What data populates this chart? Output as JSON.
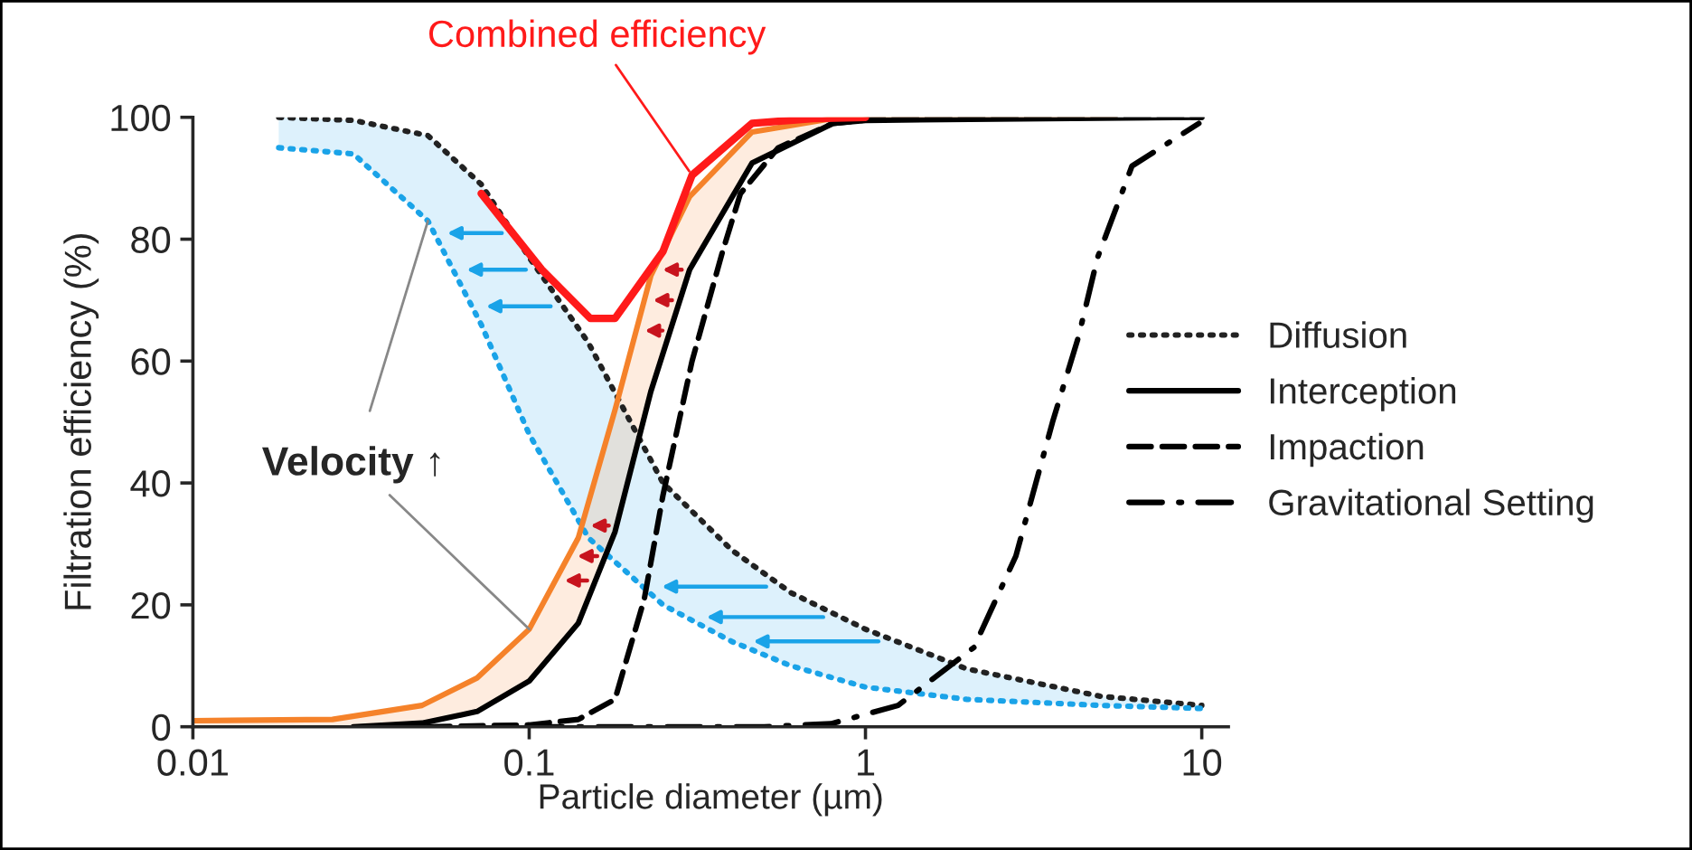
{
  "chart_data": {
    "type": "line",
    "xlabel": "Particle diameter (µm)",
    "ylabel": "Filtration efficiency (%)",
    "log": "x",
    "xlim": [
      0.01,
      12
    ],
    "xticks": [
      0.01,
      0.1,
      1,
      10
    ],
    "ylim": [
      0,
      100
    ],
    "yticks": [
      0,
      20,
      40,
      60,
      80,
      100
    ],
    "grid": false,
    "legend": "right",
    "series": [
      {
        "name": "Diffusion",
        "color": "#222222",
        "line_style": "dotted",
        "x": [
          0.018,
          0.03,
          0.05,
          0.072,
          0.1,
          0.15,
          0.25,
          0.4,
          0.6,
          1,
          2,
          5,
          10
        ],
        "values": [
          100,
          99.5,
          97,
          89,
          77,
          63,
          40,
          29,
          22,
          16,
          9.5,
          5,
          3.5
        ]
      },
      {
        "color": "#1aa3e8",
        "line_style": "dotted",
        "x": [
          0.018,
          0.03,
          0.05,
          0.072,
          0.1,
          0.15,
          0.25,
          0.4,
          0.6,
          1,
          2,
          5,
          10
        ],
        "values": [
          95,
          94,
          83,
          66,
          48,
          31,
          20,
          14,
          10,
          6.5,
          4.5,
          3.5,
          3
        ],
        "lower": [
          95,
          94,
          83,
          66,
          48,
          31,
          20,
          14,
          10,
          6.5,
          4.5,
          3.5,
          3
        ],
        "upper": [
          100,
          99.5,
          97,
          89,
          77,
          63,
          40,
          29,
          22,
          16,
          9.5,
          5,
          3.5
        ]
      },
      {
        "color": "#f5822a",
        "line_style": "solid",
        "x": [
          0.01,
          0.026,
          0.048,
          0.07,
          0.1,
          0.14,
          0.18,
          0.23,
          0.3,
          0.46,
          0.8,
          1,
          5.5
        ],
        "values": [
          1,
          1.2,
          3.5,
          8,
          16,
          31,
          52,
          74,
          87,
          97.6,
          99.8,
          100,
          100
        ],
        "upper": [
          1,
          1.2,
          3.5,
          8,
          16,
          31,
          52,
          74,
          87,
          97.6,
          99.8,
          100,
          100
        ],
        "lower": [
          0,
          0,
          0.6,
          2.5,
          7.5,
          17,
          32,
          55,
          75,
          92.5,
          99,
          99.5,
          100
        ]
      },
      {
        "name": "Interception",
        "color": "#000000",
        "line_style": "solid",
        "x": [
          0.03,
          0.048,
          0.07,
          0.1,
          0.14,
          0.18,
          0.23,
          0.3,
          0.46,
          0.8,
          1,
          10
        ],
        "values": [
          0,
          0.6,
          2.5,
          7.5,
          17,
          32,
          55,
          75,
          92.5,
          99,
          99.5,
          100
        ]
      },
      {
        "name": "Impaction",
        "color": "#000000",
        "line_style": "dashed",
        "x": [
          0.05,
          0.1,
          0.14,
          0.18,
          0.22,
          0.25,
          0.305,
          0.376,
          0.425,
          0.55,
          0.8,
          1.2,
          10
        ],
        "values": [
          0,
          0.3,
          1.2,
          4.5,
          21,
          38,
          60,
          78,
          87.5,
          95,
          99,
          100,
          100
        ]
      },
      {
        "name": "Gravitational Setting",
        "color": "#000000",
        "line_style": "dashdot",
        "x": [
          0.1,
          0.5,
          0.79,
          1.25,
          2.1,
          2.8,
          3.6,
          4.3,
          4.9,
          6.2,
          9.8
        ],
        "values": [
          0,
          0,
          0.5,
          3.5,
          13,
          28,
          50,
          64,
          77,
          92,
          99
        ]
      },
      {
        "color": "#ff1a1a",
        "line_style": "solid",
        "x": [
          0.072,
          0.109,
          0.152,
          0.18,
          0.25,
          0.305,
          0.46,
          0.7,
          1
        ],
        "values": [
          87.5,
          75,
          67,
          67,
          78,
          90.5,
          99,
          99.8,
          100
        ]
      }
    ],
    "annotations": [
      {
        "text": "Combined efficiency",
        "x": 0.305,
        "y": 90.5
      },
      {
        "text": "Velocity ↑",
        "x": 0.05,
        "y": 83
      }
    ]
  }
}
